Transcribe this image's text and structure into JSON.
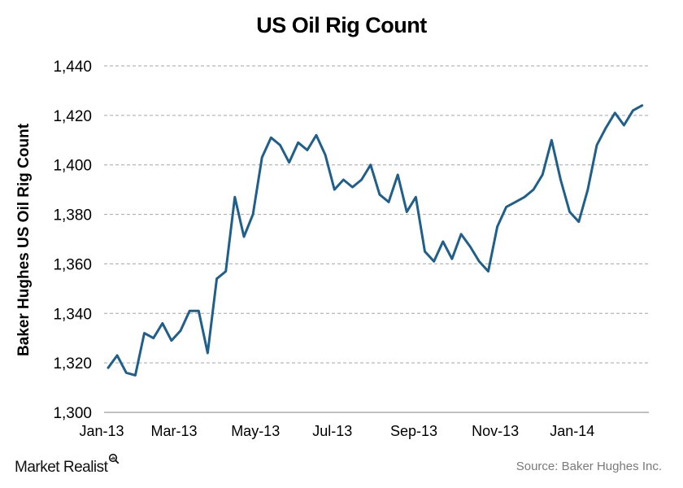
{
  "chart_data": {
    "type": "line",
    "title": "US Oil Rig Count",
    "xlabel": "",
    "ylabel": "Baker Hughes US Oil Rig Count",
    "ylim": [
      1300,
      1440
    ],
    "yticks": [
      1300,
      1320,
      1340,
      1360,
      1380,
      1400,
      1420,
      1440
    ],
    "ytick_labels": [
      "1,300",
      "1,320",
      "1,340",
      "1,360",
      "1,380",
      "1,400",
      "1,420",
      "1,440"
    ],
    "xtick_labels": [
      "Jan-13",
      "Mar-13",
      "May-13",
      "Jul-13",
      "Sep-13",
      "Nov-13",
      "Jan-14"
    ],
    "xtick_indices": [
      0,
      8,
      17,
      25.5,
      34.5,
      43.5,
      52
    ],
    "grid": "horizontal dashed",
    "legend": "none",
    "line_color": "#1f5f8b",
    "series": [
      {
        "name": "Baker Hughes US Oil Rig Count",
        "values": [
          1318,
          1323,
          1316,
          1315,
          1332,
          1330,
          1336,
          1329,
          1333,
          1341,
          1341,
          1324,
          1354,
          1357,
          1387,
          1371,
          1380,
          1403,
          1411,
          1408,
          1401,
          1409,
          1406,
          1412,
          1404,
          1390,
          1394,
          1391,
          1394,
          1400,
          1388,
          1385,
          1396,
          1381,
          1387,
          1365,
          1361,
          1369,
          1362,
          1372,
          1367,
          1361,
          1357,
          1375,
          1383,
          1385,
          1387,
          1390,
          1396,
          1410,
          1394,
          1381,
          1377,
          1390,
          1408,
          1415,
          1421,
          1416,
          1422,
          1424
        ]
      }
    ]
  },
  "footer": {
    "brand": "Market Realist",
    "brand_icon": "magnifier-chart-icon",
    "source": "Source: Baker Hughes Inc."
  }
}
